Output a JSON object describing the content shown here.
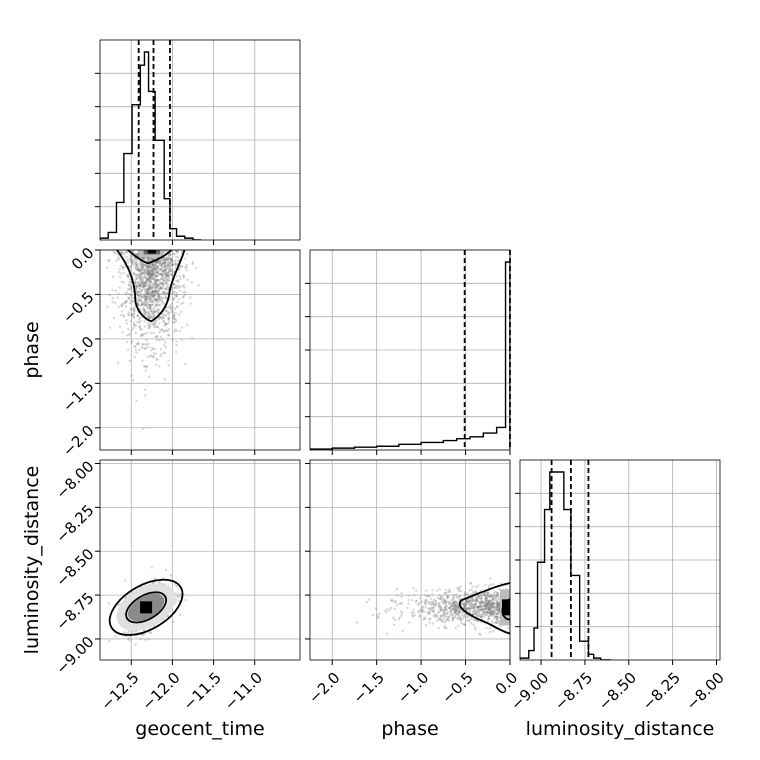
{
  "chart_data": {
    "type": "corner",
    "parameters": [
      "geocent_time",
      "phase",
      "luminosity_distance"
    ],
    "ranges": {
      "geocent_time": [
        -12.88,
        -10.45
      ],
      "phase": [
        -2.25,
        0.0
      ],
      "luminosity_distance": [
        -9.12,
        -7.98
      ]
    },
    "ticks": {
      "geocent_time": [
        -12.5,
        -12.0,
        -11.5,
        -11.0
      ],
      "phase_x": [
        -2.0,
        -1.5,
        -1.0,
        -0.5,
        0.0
      ],
      "phase_y": [
        0.0,
        -0.5,
        -1.0,
        -1.5,
        -2.0
      ],
      "luminosity_distance_x": [
        -9.0,
        -8.75,
        -8.5,
        -8.25,
        -8.0
      ],
      "luminosity_distance_y": [
        -8.0,
        -8.25,
        -8.5,
        -8.75,
        -9.0
      ]
    },
    "tick_labels": {
      "geocent_time": [
        "−12.5",
        "−12.0",
        "−11.5",
        "−11.0"
      ],
      "phase_x": [
        "−2.0",
        "−1.5",
        "−1.0",
        "−0.5",
        "0.0"
      ],
      "phase_y": [
        "0.0",
        "−0.5",
        "−1.0",
        "−1.5",
        "−2.0"
      ],
      "luminosity_distance_x": [
        "−9.00",
        "−8.75",
        "−8.50",
        "−8.25",
        "−8.00"
      ],
      "luminosity_distance_y": [
        "−8.00",
        "−8.25",
        "−8.50",
        "−8.75",
        "−9.00"
      ]
    },
    "axis_labels": {
      "bottom": [
        "geocent_time",
        "phase",
        "luminosity_distance"
      ],
      "left": [
        "phase",
        "luminosity_distance"
      ]
    },
    "histograms": {
      "geocent_time": {
        "edges": [
          -12.88,
          -12.78,
          -12.68,
          -12.59,
          -12.49,
          -12.39,
          -12.34,
          -12.29,
          -12.21,
          -12.1,
          -12.03,
          -11.95,
          -11.85,
          -11.75,
          -11.65
        ],
        "counts": [
          1,
          4,
          20,
          46,
          72,
          93,
          100,
          79,
          53,
          22,
          6,
          2,
          1,
          0
        ]
      },
      "phase": {
        "edges": [
          -2.25,
          -2.0,
          -1.75,
          -1.5,
          -1.25,
          -1.0,
          -0.75,
          -0.6,
          -0.45,
          -0.3,
          -0.15,
          -0.05,
          0.0
        ],
        "counts": [
          0.5,
          1,
          1.5,
          2,
          3,
          4,
          5,
          6,
          7,
          9,
          12,
          100
        ]
      },
      "luminosity_distance": {
        "edges": [
          -9.12,
          -9.07,
          -9.04,
          -9.02,
          -8.98,
          -8.95,
          -8.91,
          -8.87,
          -8.83,
          -8.78,
          -8.73,
          -8.7,
          -8.66,
          -8.6
        ],
        "counts": [
          1,
          5,
          17,
          52,
          80,
          100,
          100,
          80,
          45,
          10,
          3,
          1,
          0
        ]
      }
    },
    "quantiles": {
      "geocent_time": [
        -12.41,
        -12.23,
        -12.03
      ],
      "phase": [
        -0.51,
        0.0
      ],
      "luminosity_distance": [
        -8.94,
        -8.83,
        -8.73
      ]
    },
    "scatter": {
      "geocent_time_vs_phase": {
        "center": [
          -12.25,
          -0.05
        ],
        "spread": [
          0.18,
          0.5
        ],
        "n": 1500
      },
      "geocent_time_vs_luminosity_distance": {
        "center": [
          -12.3,
          -8.82
        ],
        "spread": [
          0.14,
          0.06
        ],
        "n": 1000
      },
      "phase_vs_luminosity_distance": {
        "center": [
          -0.05,
          -8.82
        ],
        "spread": [
          0.45,
          0.05
        ],
        "n": 1000
      }
    },
    "grid": true
  }
}
